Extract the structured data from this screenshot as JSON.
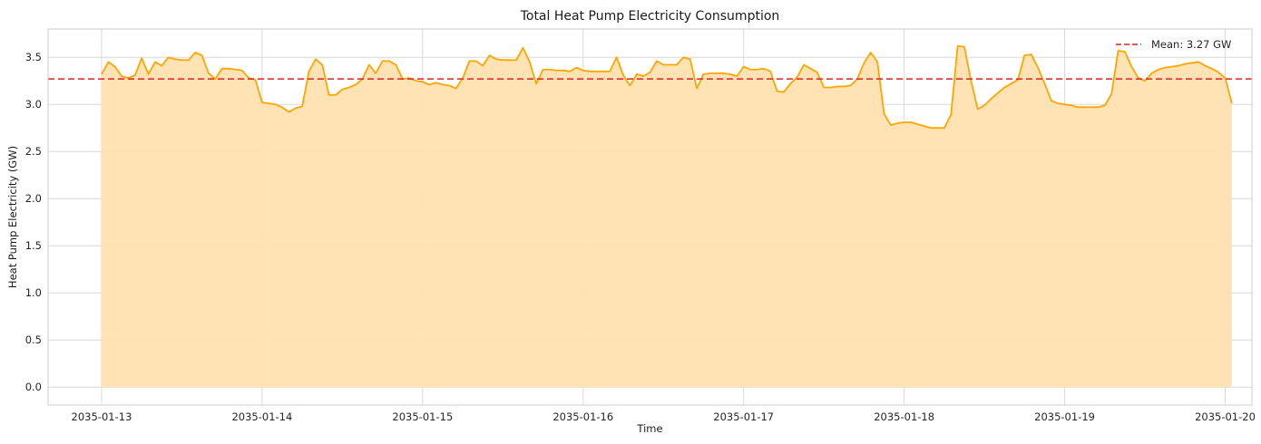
{
  "chart_data": {
    "type": "area",
    "title": "Total Heat Pump Electricity Consumption",
    "xlabel": "Time",
    "ylabel": "Heat Pump Electricity (GW)",
    "xlim": [
      "2035-01-12T16:00",
      "2035-01-20T04:00"
    ],
    "ylim": [
      -0.19,
      3.8
    ],
    "x_ticks": [
      "2035-01-13",
      "2035-01-14",
      "2035-01-15",
      "2035-01-16",
      "2035-01-17",
      "2035-01-18",
      "2035-01-19",
      "2035-01-20"
    ],
    "y_ticks": [
      "0.0",
      "0.5",
      "1.0",
      "1.5",
      "2.0",
      "2.5",
      "3.0",
      "3.5"
    ],
    "grid": true,
    "legend_position": "top-right",
    "colors": {
      "line": "#ffa500",
      "fill": "#ffe2b0",
      "mean": "#e02020",
      "grid": "#d9d9d9",
      "axes": "#cccccc"
    },
    "mean": {
      "value": 3.27,
      "label": "Mean: 3.27 GW"
    },
    "series": [
      {
        "start": "2035-01-13T00:00",
        "step_hours": 1,
        "values": [
          3.32,
          3.45,
          3.4,
          3.3,
          3.28,
          3.31,
          3.49,
          3.32,
          3.45,
          3.41,
          3.5,
          3.48,
          3.47,
          3.47,
          3.55,
          3.52,
          3.33,
          3.27,
          3.38,
          3.38,
          3.37,
          3.36,
          3.28,
          3.26,
          3.02,
          3.01,
          3.0,
          2.97,
          2.92,
          2.96,
          2.98,
          3.35,
          3.48,
          3.42,
          3.1,
          3.1,
          3.16,
          3.18,
          3.21,
          3.27,
          3.42,
          3.33,
          3.46,
          3.46,
          3.42,
          3.27,
          3.28,
          3.25,
          3.24,
          3.21,
          3.23,
          3.21,
          3.2,
          3.17,
          3.28,
          3.46,
          3.46,
          3.41,
          3.52,
          3.48,
          3.47,
          3.47,
          3.47,
          3.6,
          3.45,
          3.22,
          3.37,
          3.37,
          3.36,
          3.36,
          3.35,
          3.39,
          3.36,
          3.35,
          3.35,
          3.35,
          3.35,
          3.5,
          3.31,
          3.2,
          3.32,
          3.3,
          3.34,
          3.46,
          3.42,
          3.42,
          3.42,
          3.5,
          3.48,
          3.17,
          3.32,
          3.33,
          3.33,
          3.33,
          3.32,
          3.3,
          3.4,
          3.37,
          3.37,
          3.38,
          3.35,
          3.14,
          3.13,
          3.22,
          3.29,
          3.42,
          3.38,
          3.34,
          3.18,
          3.18,
          3.19,
          3.19,
          3.2,
          3.27,
          3.44,
          3.55,
          3.45,
          2.9,
          2.78,
          2.8,
          2.81,
          2.81,
          2.79,
          2.77,
          2.75,
          2.75,
          2.75,
          2.89,
          3.62,
          3.61,
          3.25,
          2.95,
          2.99,
          3.06,
          3.12,
          3.18,
          3.22,
          3.26,
          3.52,
          3.53,
          3.39,
          3.22,
          3.04,
          3.01,
          3.0,
          2.99,
          2.97,
          2.97,
          2.97,
          2.97,
          2.99,
          3.11,
          3.57,
          3.56,
          3.4,
          3.28,
          3.25,
          3.33,
          3.37,
          3.39,
          3.4,
          3.41,
          3.43,
          3.44,
          3.45,
          3.41,
          3.38,
          3.34,
          3.28,
          3.01
        ]
      }
    ]
  }
}
